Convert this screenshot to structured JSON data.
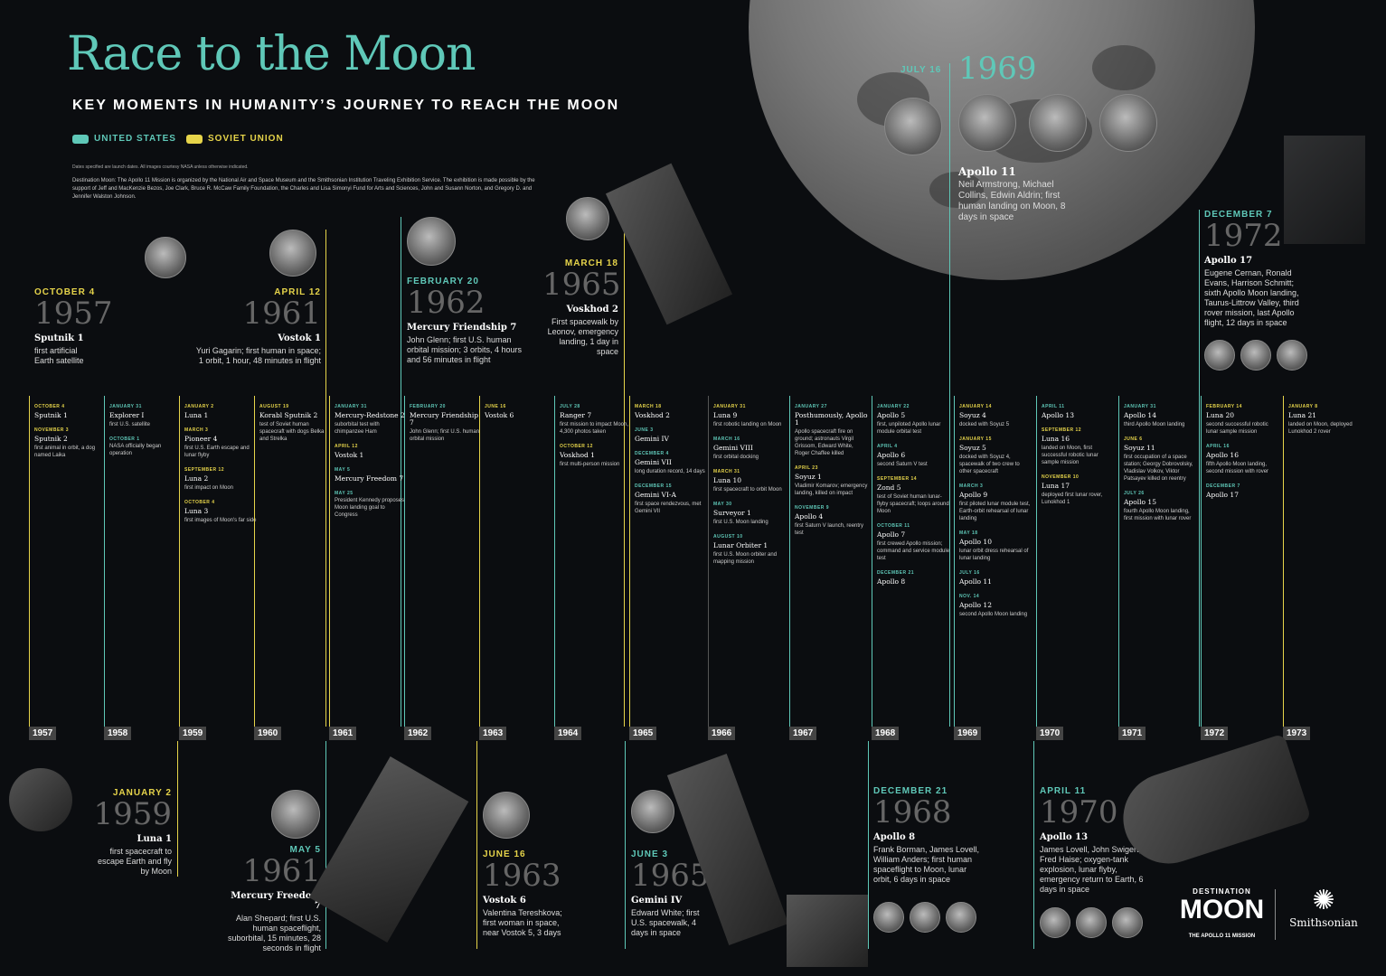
{
  "header": {
    "title": "Race to the Moon",
    "subtitle": "KEY MOMENTS IN HUMANITY’S JOURNEY TO REACH THE MOON",
    "legend_us": "UNITED STATES",
    "legend_ussr": "SOVIET UNION",
    "note": "Dates specified are launch dates. All images courtesy NASA unless otherwise indicated.",
    "credit": "Destination Moon: The Apollo 11 Mission is organized by the National Air and Space Museum and the Smithsonian Institution Traveling Exhibition Service. The exhibition is made possible by the support of Jeff and MacKenzie Bezos, Joe Clark, Bruce R. McCaw Family Foundation, the Charles and Lisa Simonyi Fund for Arts and Sciences, John and Susann Norton, and Gregory D. and Jennifer Walston Johnson."
  },
  "colors": {
    "us": "#5fc8b8",
    "ussr": "#e6d44a",
    "background": "#0b0d10"
  },
  "featured_top": [
    {
      "date": "OCTOBER 4",
      "year": "1957",
      "name": "Sputnik 1",
      "desc": "first artificial Earth satellite"
    },
    {
      "date": "APRIL 12",
      "year": "1961",
      "name": "Vostok 1",
      "desc": "Yuri Gagarin; first human in space; 1 orbit, 1 hour, 48 minutes in flight"
    },
    {
      "date": "FEBRUARY 20",
      "year": "1962",
      "name": "Mercury Friendship 7",
      "desc": "John Glenn; first U.S. human orbital mission; 3 orbits, 4 hours and 56 minutes in flight"
    },
    {
      "date": "MARCH 18",
      "year": "1965",
      "name": "Voskhod 2",
      "desc": "First spacewalk by Leonov, emergency landing, 1 day in space"
    },
    {
      "date": "JULY 16",
      "year": "1969",
      "name": "Apollo 11",
      "desc": "Neil Armstrong, Michael Collins, Edwin Aldrin; first human landing on Moon, 8 days in space"
    },
    {
      "date": "DECEMBER 7",
      "year": "1972",
      "name": "Apollo 17",
      "desc": "Eugene Cernan, Ronald Evans, Harrison Schmitt; sixth Apollo Moon landing, Taurus-Littrow Valley, third rover mission, last Apollo flight, 12 days in space"
    }
  ],
  "featured_bottom": [
    {
      "date": "JANUARY 2",
      "year": "1959",
      "name": "Luna 1",
      "desc": "first spacecraft to escape Earth and fly by Moon"
    },
    {
      "date": "MAY 5",
      "year": "1961",
      "name": "Mercury Freedom 7",
      "desc": "Alan Shepard; first U.S. human spaceflight, suborbital, 15 minutes, 28 seconds in flight"
    },
    {
      "date": "JUNE 16",
      "year": "1963",
      "name": "Vostok 6",
      "desc": "Valentina Tereshkova; first woman in space, near Vostok 5, 3 days"
    },
    {
      "date": "JUNE 3",
      "year": "1965",
      "name": "Gemini IV",
      "desc": "Edward White; first U.S. spacewalk, 4 days in space"
    },
    {
      "date": "DECEMBER 21",
      "year": "1968",
      "name": "Apollo 8",
      "desc": "Frank Borman, James Lovell, William Anders; first human spaceflight to Moon, lunar orbit, 6 days in space"
    },
    {
      "date": "APRIL 11",
      "year": "1970",
      "name": "Apollo 13",
      "desc": "James Lovell, John Swigert, Fred Haise; oxygen-tank explosion, lunar flyby, emergency return to Earth, 6 days in space"
    }
  ],
  "timeline_years": [
    "1957",
    "1958",
    "1959",
    "1960",
    "1961",
    "1962",
    "1963",
    "1964",
    "1965",
    "1966",
    "1967",
    "1968",
    "1969",
    "1970",
    "1971",
    "1972",
    "1973"
  ],
  "timeline_columns": [
    {
      "events": [
        {
          "date": "OCTOBER 4",
          "name": "Sputnik 1",
          "desc": ""
        },
        {
          "date": "NOVEMBER 3",
          "name": "Sputnik 2",
          "desc": "first animal in orbit, a dog named Laika"
        }
      ]
    },
    {
      "events": [
        {
          "date": "JANUARY 31",
          "name": "Explorer I",
          "desc": "first U.S. satellite"
        },
        {
          "date": "OCTOBER 1",
          "name": "",
          "desc": "NASA officially began operation"
        }
      ]
    },
    {
      "events": [
        {
          "date": "JANUARY 2",
          "name": "Luna 1",
          "desc": ""
        },
        {
          "date": "MARCH 3",
          "name": "Pioneer 4",
          "desc": "first U.S. Earth escape and lunar flyby"
        },
        {
          "date": "SEPTEMBER 12",
          "name": "Luna 2",
          "desc": "first impact on Moon"
        },
        {
          "date": "OCTOBER 4",
          "name": "Luna 3",
          "desc": "first images of Moon's far side"
        }
      ]
    },
    {
      "events": [
        {
          "date": "AUGUST 19",
          "name": "Korabl Sputnik 2",
          "desc": "test of Soviet human spacecraft with dogs Belka and Strelka"
        }
      ]
    },
    {
      "events": [
        {
          "date": "JANUARY 31",
          "name": "Mercury-Redstone 2",
          "desc": "suborbital test with chimpanzee Ham"
        },
        {
          "date": "APRIL 12",
          "name": "Vostok 1",
          "desc": ""
        },
        {
          "date": "MAY 5",
          "name": "Mercury Freedom 7",
          "desc": ""
        },
        {
          "date": "MAY 25",
          "name": "",
          "desc": "President Kennedy proposes Moon landing goal to Congress"
        }
      ]
    },
    {
      "events": [
        {
          "date": "FEBRUARY 20",
          "name": "Mercury Friendship 7",
          "desc": "John Glenn; first U.S. human orbital mission"
        }
      ]
    },
    {
      "events": [
        {
          "date": "JUNE 16",
          "name": "Vostok 6",
          "desc": ""
        }
      ]
    },
    {
      "events": [
        {
          "date": "JULY 28",
          "name": "Ranger 7",
          "desc": "first mission to impact Moon, 4,300 photos taken"
        },
        {
          "date": "OCTOBER 12",
          "name": "Voskhod 1",
          "desc": "first multi-person mission"
        }
      ]
    },
    {
      "events": [
        {
          "date": "MARCH 18",
          "name": "Voskhod 2",
          "desc": ""
        },
        {
          "date": "JUNE 3",
          "name": "Gemini IV",
          "desc": ""
        },
        {
          "date": "DECEMBER 4",
          "name": "Gemini VII",
          "desc": "long duration record, 14 days"
        },
        {
          "date": "DECEMBER 15",
          "name": "Gemini VI-A",
          "desc": "first space rendezvous, met Gemini VII"
        }
      ]
    },
    {
      "events": [
        {
          "date": "JANUARY 31",
          "name": "Luna 9",
          "desc": "first robotic landing on Moon"
        },
        {
          "date": "MARCH 16",
          "name": "Gemini VIII",
          "desc": "first orbital docking"
        },
        {
          "date": "MARCH 31",
          "name": "Luna 10",
          "desc": "first spacecraft to orbit Moon"
        },
        {
          "date": "MAY 30",
          "name": "Surveyor 1",
          "desc": "first U.S. Moon landing"
        },
        {
          "date": "AUGUST 10",
          "name": "Lunar Orbiter 1",
          "desc": "first U.S. Moon orbiter and mapping mission"
        }
      ]
    },
    {
      "events": [
        {
          "date": "JANUARY 27",
          "name": "Posthumously, Apollo 1",
          "desc": "Apollo spacecraft fire on ground; astronauts Virgil Grissom, Edward White, Roger Chaffee killed"
        },
        {
          "date": "APRIL 23",
          "name": "Soyuz 1",
          "desc": "Vladimir Komarov; emergency landing, killed on impact"
        },
        {
          "date": "NOVEMBER 9",
          "name": "Apollo 4",
          "desc": "first Saturn V launch, reentry test"
        }
      ]
    },
    {
      "events": [
        {
          "date": "JANUARY 22",
          "name": "Apollo 5",
          "desc": "first, unpiloted Apollo lunar module orbital test"
        },
        {
          "date": "APRIL 4",
          "name": "Apollo 6",
          "desc": "second Saturn V test"
        },
        {
          "date": "SEPTEMBER 14",
          "name": "Zond 5",
          "desc": "test of Soviet human lunar-flyby spacecraft; loops around Moon"
        },
        {
          "date": "OCTOBER 11",
          "name": "Apollo 7",
          "desc": "first crewed Apollo mission; command and service module test"
        },
        {
          "date": "DECEMBER 21",
          "name": "Apollo 8",
          "desc": ""
        }
      ]
    },
    {
      "events": [
        {
          "date": "JANUARY 14",
          "name": "Soyuz 4",
          "desc": "docked with Soyuz 5"
        },
        {
          "date": "JANUARY 15",
          "name": "Soyuz 5",
          "desc": "docked with Soyuz 4, spacewalk of two crew to other spacecraft"
        },
        {
          "date": "MARCH 3",
          "name": "Apollo 9",
          "desc": "first piloted lunar module test, Earth-orbit rehearsal of lunar landing"
        },
        {
          "date": "MAY 18",
          "name": "Apollo 10",
          "desc": "lunar orbit dress rehearsal of lunar landing"
        },
        {
          "date": "JULY 16",
          "name": "Apollo 11",
          "desc": ""
        },
        {
          "date": "NOV. 14",
          "name": "Apollo 12",
          "desc": "second Apollo Moon landing"
        }
      ]
    },
    {
      "events": [
        {
          "date": "APRIL 11",
          "name": "Apollo 13",
          "desc": ""
        },
        {
          "date": "SEPTEMBER 12",
          "name": "Luna 16",
          "desc": "landed on Moon, first successful robotic lunar sample mission"
        },
        {
          "date": "NOVEMBER 10",
          "name": "Luna 17",
          "desc": "deployed first lunar rover, Lunokhod 1"
        }
      ]
    },
    {
      "events": [
        {
          "date": "JANUARY 31",
          "name": "Apollo 14",
          "desc": "third Apollo Moon landing"
        },
        {
          "date": "JUNE 6",
          "name": "Soyuz 11",
          "desc": "first occupation of a space station; Georgy Dobrovolsky, Vladislav Volkov, Viktor Patsayev killed on reentry"
        },
        {
          "date": "JULY 26",
          "name": "Apollo 15",
          "desc": "fourth Apollo Moon landing, first mission with lunar rover"
        }
      ]
    },
    {
      "events": [
        {
          "date": "FEBRUARY 14",
          "name": "Luna 20",
          "desc": "second successful robotic lunar sample mission"
        },
        {
          "date": "APRIL 16",
          "name": "Apollo 16",
          "desc": "fifth Apollo Moon landing, second mission with rover"
        },
        {
          "date": "DECEMBER 7",
          "name": "Apollo 17",
          "desc": ""
        }
      ]
    },
    {
      "events": [
        {
          "date": "JANUARY 8",
          "name": "Luna 21",
          "desc": "landed on Moon, deployed Lunokhod 2 rover"
        }
      ]
    }
  ],
  "logos": {
    "destination_top": "DESTINATION",
    "destination_main": "MOON",
    "destination_sub": "THE APOLLO 11 MISSION",
    "smithsonian": "Smithsonian"
  }
}
